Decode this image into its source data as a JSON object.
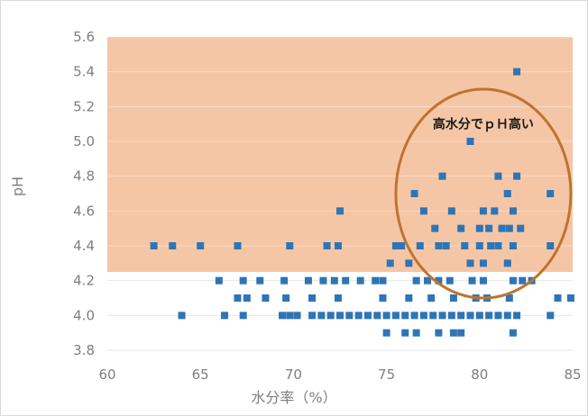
{
  "chart_data": {
    "type": "scatter",
    "title": "",
    "xlabel": "水分率（%）",
    "ylabel": "pH",
    "xlim": [
      60,
      85
    ],
    "ylim": [
      3.8,
      5.6
    ],
    "x_ticks": [
      "60",
      "65",
      "70",
      "75",
      "80",
      "85"
    ],
    "y_ticks": [
      "3.8",
      "4.0",
      "4.2",
      "4.4",
      "4.6",
      "4.8",
      "5.0",
      "5.2",
      "5.4",
      "5.6"
    ],
    "grid": true,
    "legend": "none",
    "shaded_region": {
      "y_from": 4.25,
      "y_to": 5.6,
      "x_from": 60,
      "x_to": 85,
      "color": "#f5c6a5"
    },
    "highlight_ellipse": {
      "cx": 80.2,
      "cy": 4.7,
      "rx": 4.7,
      "ry": 0.6,
      "color": "#c0732f"
    },
    "annotation": {
      "text": "高水分でｐＨ高い",
      "x": 80.2,
      "y": 5.1
    },
    "marker_color": "#2e75b6",
    "series": [
      {
        "points": [
          [
            62.5,
            4.4
          ],
          [
            63.5,
            4.4
          ],
          [
            65.0,
            4.4
          ],
          [
            67.0,
            4.4
          ],
          [
            69.8,
            4.4
          ],
          [
            71.8,
            4.4
          ],
          [
            72.4,
            4.4
          ],
          [
            72.5,
            4.6
          ],
          [
            75.5,
            4.4
          ],
          [
            75.8,
            4.4
          ],
          [
            76.8,
            4.4
          ],
          [
            77.8,
            4.4
          ],
          [
            78.2,
            4.4
          ],
          [
            79.2,
            4.4
          ],
          [
            80.0,
            4.4
          ],
          [
            80.6,
            4.4
          ],
          [
            81.0,
            4.4
          ],
          [
            81.8,
            4.4
          ],
          [
            83.8,
            4.4
          ],
          [
            76.5,
            4.7
          ],
          [
            77.0,
            4.6
          ],
          [
            77.6,
            4.5
          ],
          [
            78.0,
            4.8
          ],
          [
            78.5,
            4.6
          ],
          [
            79.0,
            4.5
          ],
          [
            79.5,
            5.0
          ],
          [
            80.0,
            4.5
          ],
          [
            80.2,
            4.6
          ],
          [
            80.5,
            4.5
          ],
          [
            80.8,
            4.6
          ],
          [
            81.0,
            4.8
          ],
          [
            81.2,
            4.5
          ],
          [
            81.5,
            4.7
          ],
          [
            81.6,
            4.5
          ],
          [
            81.8,
            4.6
          ],
          [
            82.0,
            4.8
          ],
          [
            82.2,
            4.5
          ],
          [
            82.0,
            5.4
          ],
          [
            81.5,
            4.3
          ],
          [
            83.8,
            4.7
          ],
          [
            75.2,
            4.3
          ],
          [
            76.2,
            4.3
          ],
          [
            79.5,
            4.3
          ],
          [
            80.2,
            4.3
          ],
          [
            66.0,
            4.2
          ],
          [
            67.3,
            4.2
          ],
          [
            68.2,
            4.2
          ],
          [
            69.5,
            4.2
          ],
          [
            70.8,
            4.2
          ],
          [
            71.6,
            4.2
          ],
          [
            72.2,
            4.2
          ],
          [
            72.8,
            4.2
          ],
          [
            73.6,
            4.2
          ],
          [
            74.4,
            4.2
          ],
          [
            74.8,
            4.2
          ],
          [
            76.6,
            4.2
          ],
          [
            77.2,
            4.2
          ],
          [
            77.8,
            4.2
          ],
          [
            78.4,
            4.2
          ],
          [
            79.6,
            4.2
          ],
          [
            80.2,
            4.2
          ],
          [
            81.8,
            4.2
          ],
          [
            82.3,
            4.2
          ],
          [
            82.8,
            4.2
          ],
          [
            67.0,
            4.1
          ],
          [
            67.5,
            4.1
          ],
          [
            68.5,
            4.1
          ],
          [
            69.6,
            4.1
          ],
          [
            71.0,
            4.1
          ],
          [
            72.4,
            4.1
          ],
          [
            74.8,
            4.1
          ],
          [
            76.2,
            4.1
          ],
          [
            77.4,
            4.1
          ],
          [
            78.6,
            4.1
          ],
          [
            79.8,
            4.1
          ],
          [
            80.4,
            4.1
          ],
          [
            81.6,
            4.1
          ],
          [
            84.2,
            4.1
          ],
          [
            84.9,
            4.1
          ],
          [
            64.0,
            4.0
          ],
          [
            66.3,
            4.0
          ],
          [
            67.3,
            4.0
          ],
          [
            69.4,
            4.0
          ],
          [
            69.8,
            4.0
          ],
          [
            70.2,
            4.0
          ],
          [
            71.0,
            4.0
          ],
          [
            71.5,
            4.0
          ],
          [
            72.0,
            4.0
          ],
          [
            72.5,
            4.0
          ],
          [
            73.0,
            4.0
          ],
          [
            73.5,
            4.0
          ],
          [
            74.0,
            4.0
          ],
          [
            74.5,
            4.0
          ],
          [
            75.0,
            4.0
          ],
          [
            75.5,
            4.0
          ],
          [
            76.0,
            4.0
          ],
          [
            76.5,
            4.0
          ],
          [
            77.0,
            4.0
          ],
          [
            77.5,
            4.0
          ],
          [
            78.0,
            4.0
          ],
          [
            78.5,
            4.0
          ],
          [
            79.0,
            4.0
          ],
          [
            79.5,
            4.0
          ],
          [
            80.0,
            4.0
          ],
          [
            80.5,
            4.0
          ],
          [
            81.0,
            4.0
          ],
          [
            81.5,
            4.0
          ],
          [
            82.0,
            4.0
          ],
          [
            83.8,
            4.0
          ],
          [
            75.0,
            3.9
          ],
          [
            76.0,
            3.9
          ],
          [
            76.6,
            3.9
          ],
          [
            77.8,
            3.9
          ],
          [
            78.6,
            3.9
          ],
          [
            79.0,
            3.9
          ],
          [
            81.8,
            3.9
          ]
        ]
      }
    ]
  }
}
